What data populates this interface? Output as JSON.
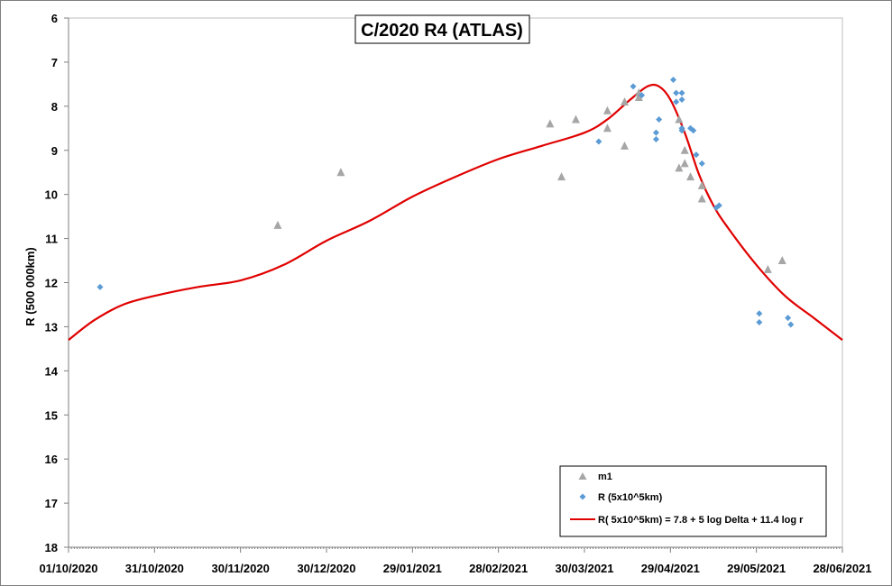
{
  "chart_data": {
    "type": "scatter",
    "title": "C/2020 R4 (ATLAS)",
    "xlabel": "",
    "ylabel": "R (500 000km)",
    "x_axis": {
      "type": "date",
      "range": [
        "2020-10-01",
        "2021-06-28"
      ],
      "ticks": [
        "2020-10-01",
        "2020-10-31",
        "2020-11-30",
        "2020-12-30",
        "2021-01-29",
        "2021-02-28",
        "2021-03-30",
        "2021-04-29",
        "2021-05-29",
        "2021-06-28"
      ],
      "tick_labels": [
        "01/10/2020",
        "31/10/2020",
        "30/11/2020",
        "30/12/2020",
        "29/01/2021",
        "28/02/2021",
        "30/03/2021",
        "29/04/2021",
        "29/05/2021",
        "28/06/2021"
      ]
    },
    "y_axis": {
      "range": [
        6,
        18
      ],
      "reversed": true,
      "ticks": [
        6,
        7,
        8,
        9,
        10,
        11,
        12,
        13,
        14,
        15,
        16,
        17,
        18
      ]
    },
    "grid": false,
    "legend_position": "bottom-right",
    "series": [
      {
        "name": "m1",
        "kind": "scatter",
        "marker": "triangle",
        "color": "#a6a6a6",
        "points": [
          [
            "2020-12-13",
            10.7
          ],
          [
            "2021-01-04",
            9.5
          ],
          [
            "2021-03-18",
            8.4
          ],
          [
            "2021-03-22",
            9.6
          ],
          [
            "2021-03-27",
            8.3
          ],
          [
            "2021-04-07",
            8.5
          ],
          [
            "2021-04-07",
            8.1
          ],
          [
            "2021-04-13",
            7.9
          ],
          [
            "2021-04-13",
            8.9
          ],
          [
            "2021-04-18",
            7.8
          ],
          [
            "2021-04-18",
            7.7
          ],
          [
            "2021-05-02",
            8.3
          ],
          [
            "2021-05-02",
            9.4
          ],
          [
            "2021-05-04",
            9.0
          ],
          [
            "2021-05-04",
            9.3
          ],
          [
            "2021-05-06",
            9.6
          ],
          [
            "2021-05-10",
            9.8
          ],
          [
            "2021-05-10",
            10.1
          ],
          [
            "2021-06-02",
            11.7
          ],
          [
            "2021-06-07",
            11.5
          ]
        ]
      },
      {
        "name": "R (5x10^5km)",
        "kind": "scatter",
        "marker": "diamond",
        "color": "#5b9bd5",
        "points": [
          [
            "2020-10-12",
            12.1
          ],
          [
            "2021-04-04",
            8.8
          ],
          [
            "2021-04-16",
            7.55
          ],
          [
            "2021-04-19",
            7.75
          ],
          [
            "2021-04-24",
            8.6
          ],
          [
            "2021-04-24",
            8.75
          ],
          [
            "2021-04-25",
            8.3
          ],
          [
            "2021-04-30",
            7.4
          ],
          [
            "2021-05-01",
            7.7
          ],
          [
            "2021-05-01",
            7.9
          ],
          [
            "2021-05-03",
            7.7
          ],
          [
            "2021-05-03",
            7.85
          ],
          [
            "2021-05-03",
            8.5
          ],
          [
            "2021-05-03",
            8.55
          ],
          [
            "2021-05-06",
            8.5
          ],
          [
            "2021-05-07",
            8.55
          ],
          [
            "2021-05-08",
            9.1
          ],
          [
            "2021-05-10",
            9.3
          ],
          [
            "2021-05-15",
            10.3
          ],
          [
            "2021-05-16",
            10.25
          ],
          [
            "2021-05-30",
            12.7
          ],
          [
            "2021-05-30",
            12.9
          ],
          [
            "2021-06-09",
            12.8
          ],
          [
            "2021-06-10",
            12.95
          ]
        ]
      },
      {
        "name": "R( 5x10^5km) = 7.8 + 5 log Delta + 11.4 log r",
        "kind": "line",
        "color": "#e00000",
        "points": [
          [
            "2020-10-01",
            13.3
          ],
          [
            "2020-10-10",
            12.85
          ],
          [
            "2020-10-20",
            12.5
          ],
          [
            "2020-10-31",
            12.3
          ],
          [
            "2020-11-15",
            12.1
          ],
          [
            "2020-11-30",
            11.95
          ],
          [
            "2020-12-15",
            11.6
          ],
          [
            "2020-12-30",
            11.05
          ],
          [
            "2021-01-14",
            10.6
          ],
          [
            "2021-01-29",
            10.05
          ],
          [
            "2021-02-13",
            9.6
          ],
          [
            "2021-02-28",
            9.2
          ],
          [
            "2021-03-15",
            8.9
          ],
          [
            "2021-03-30",
            8.6
          ],
          [
            "2021-04-07",
            8.3
          ],
          [
            "2021-04-15",
            7.85
          ],
          [
            "2021-04-21",
            7.55
          ],
          [
            "2021-04-25",
            7.55
          ],
          [
            "2021-04-29",
            7.85
          ],
          [
            "2021-05-04",
            8.6
          ],
          [
            "2021-05-09",
            9.55
          ],
          [
            "2021-05-14",
            10.25
          ],
          [
            "2021-05-19",
            10.75
          ],
          [
            "2021-05-29",
            11.6
          ],
          [
            "2021-06-08",
            12.3
          ],
          [
            "2021-06-18",
            12.8
          ],
          [
            "2021-06-28",
            13.3
          ]
        ]
      }
    ]
  }
}
